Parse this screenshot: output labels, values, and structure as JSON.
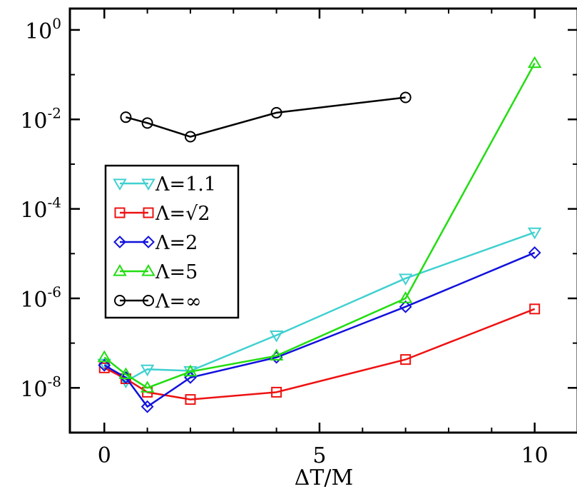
{
  "chart_data": {
    "type": "line",
    "xlabel": "ΔT/M",
    "ylabel": "",
    "xlim": [
      -0.8,
      11
    ],
    "ylim": [
      1e-09,
      3
    ],
    "yscale": "log",
    "grid": false,
    "legend_position": "middle-left",
    "x_ticks": [
      {
        "value": 0,
        "label": "0"
      },
      {
        "value": 5,
        "label": "5"
      },
      {
        "value": 10,
        "label": "10"
      }
    ],
    "y_ticks": [
      {
        "value": 1e-08,
        "base": "10",
        "exp": "-8"
      },
      {
        "value": 1e-06,
        "base": "10",
        "exp": "-6"
      },
      {
        "value": 0.0001,
        "base": "10",
        "exp": "-4"
      },
      {
        "value": 0.01,
        "base": "10",
        "exp": "-2"
      },
      {
        "value": 1,
        "base": "10",
        "exp": "0"
      }
    ],
    "series": [
      {
        "name": "Λ=1.1",
        "color": "#40d0d0",
        "marker": "triangle-down",
        "x": [
          0,
          0.5,
          1,
          2,
          4,
          7,
          10
        ],
        "y": [
          3.5e-08,
          1.4e-08,
          2.6e-08,
          2.4e-08,
          1.5e-07,
          2.8e-06,
          3e-05
        ]
      },
      {
        "name": "Λ=√2",
        "color": "#ee1111",
        "marker": "square",
        "x": [
          0,
          0.5,
          1,
          2,
          4,
          7,
          10
        ],
        "y": [
          2.8e-08,
          1.6e-08,
          8e-09,
          5.5e-09,
          8e-09,
          4.3e-08,
          5.8e-07
        ]
      },
      {
        "name": "Λ=2",
        "color": "#1111dd",
        "marker": "diamond",
        "x": [
          0,
          0.5,
          1,
          2,
          4,
          7,
          10
        ],
        "y": [
          3.2e-08,
          1.7e-08,
          3.8e-09,
          1.7e-08,
          4.8e-08,
          6.5e-07,
          1.05e-05
        ]
      },
      {
        "name": "Λ=5",
        "color": "#22dd11",
        "marker": "triangle-up",
        "x": [
          0,
          0.5,
          1,
          2,
          4,
          7,
          10
        ],
        "y": [
          4.8e-08,
          2e-08,
          1e-08,
          2.3e-08,
          5.2e-08,
          1e-06,
          0.18
        ]
      },
      {
        "name": "Λ=∞",
        "color": "#000000",
        "marker": "circle",
        "x": [
          0.5,
          1,
          2,
          4,
          7
        ],
        "y": [
          0.0112,
          0.0083,
          0.0041,
          0.0141,
          0.031
        ]
      }
    ]
  }
}
